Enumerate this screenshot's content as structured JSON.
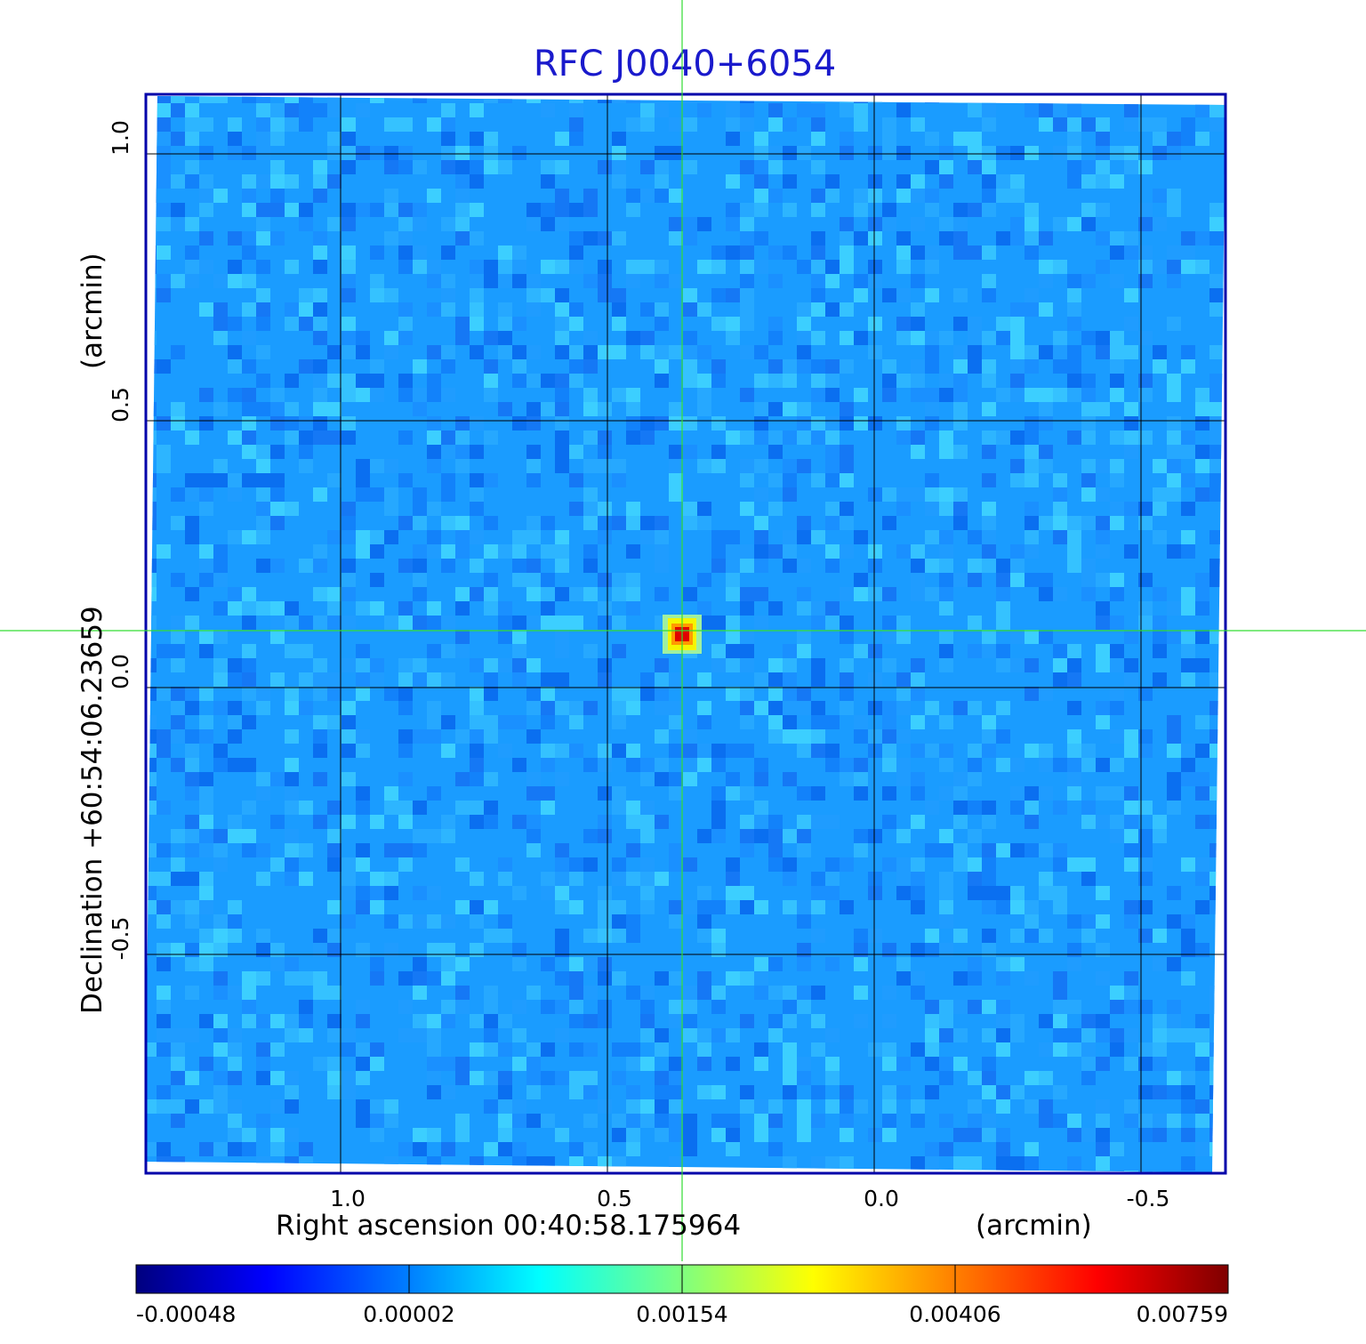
{
  "title": "RFC J0040+6054",
  "x_axis": {
    "label": "Right ascension  00:40:58.175964",
    "unit": "(arcmin)",
    "ticks": [
      {
        "value": 1.0,
        "label": "1.0"
      },
      {
        "value": 0.5,
        "label": "0.5"
      },
      {
        "value": 0.0,
        "label": "0.0"
      },
      {
        "value": -0.5,
        "label": "-0.5"
      }
    ]
  },
  "y_axis": {
    "label": "Declination  +60:54:06.23659",
    "unit": "(arcmin)",
    "ticks": [
      {
        "value": 1.0,
        "label": "1.0"
      },
      {
        "value": 0.5,
        "label": "0.5"
      },
      {
        "value": 0.0,
        "label": "0.0"
      },
      {
        "value": -0.5,
        "label": "-0.5"
      }
    ]
  },
  "source": {
    "ra_offset_arcmin": 0.36,
    "dec_offset_arcmin": 0.1
  },
  "colorbar": {
    "labels": [
      "-0.00048",
      "0.00002",
      "0.00154",
      "0.00406",
      "0.00759"
    ],
    "colormap": [
      "#00007f",
      "#0000ff",
      "#007fff",
      "#00ffff",
      "#7fff7f",
      "#ffff00",
      "#ff7f00",
      "#ff0000",
      "#7f0000"
    ]
  },
  "colors": {
    "title": "#1a1acc",
    "frame": "#0000aa",
    "grid": "#000000",
    "crosshair": "#33dd33",
    "background_noise": "#1a9cff"
  }
}
